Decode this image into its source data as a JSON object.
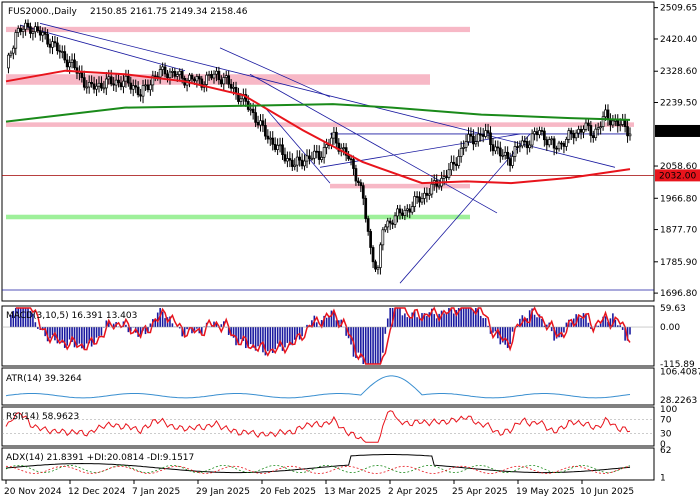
{
  "symbol": "FUS2000.,Daily",
  "ohlc_line": "2150.85 2161.75 2149.34 2158.46",
  "colors": {
    "bull_body": "#ffffff",
    "bear_body": "#000000",
    "ma_fast": "#e8141c",
    "ma_slow": "#1a8a1a",
    "trend": "#1a1aa0",
    "resistance_zone": "#f7b8c6",
    "support_zone": "#9ef09a",
    "price_tag": "#000000",
    "support_tag": "#e8141c"
  },
  "chart_data": [
    {
      "type": "candlestick",
      "title": "FUS2000.,Daily",
      "ohlc_label": "2150.85 2161.75 2149.34 2158.46",
      "x_dates": [
        "20 Nov 2024",
        "12 Dec 2024",
        "7 Jan 2025",
        "29 Jan 2025",
        "20 Feb 2025",
        "13 Mar 2025",
        "2 Apr 2025",
        "25 Apr 2025",
        "19 May 2025",
        "10 Jun 2025"
      ],
      "y_ticks": [
        2509.65,
        2420.4,
        2328.6,
        2239.5,
        2058.6,
        1966.8,
        1877.7,
        1785.9,
        1696.8
      ],
      "ylim": [
        1680,
        2520
      ],
      "last_price": 2158.46,
      "last_price_label": "2158.46",
      "support_level": 2032.0,
      "support_label": "2032.00",
      "series": [
        {
          "name": "MA fast",
          "x": [
            0,
            20,
            40,
            60,
            80,
            100,
            120,
            140,
            155,
            170,
            190,
            210
          ],
          "y": [
            2300,
            2330,
            2320,
            2300,
            2260,
            2160,
            2070,
            2010,
            2015,
            2010,
            2025,
            2050
          ]
        },
        {
          "name": "MA slow",
          "x": [
            0,
            40,
            80,
            110,
            130,
            160,
            190,
            210
          ],
          "y": [
            2185,
            2225,
            2230,
            2235,
            2225,
            2205,
            2195,
            2190
          ]
        }
      ],
      "zones": [
        {
          "kind": "resistance",
          "from": 2440,
          "to": 2455
        },
        {
          "kind": "resistance",
          "from": 2290,
          "to": 2320
        },
        {
          "kind": "resistance",
          "from": 2170,
          "to": 2183
        },
        {
          "kind": "resistance",
          "from": 1995,
          "to": 2008
        },
        {
          "kind": "support",
          "from": 1907,
          "to": 1920
        }
      ]
    },
    {
      "type": "bar",
      "label": "MACD(3,10,5) 16.391 13.403",
      "y_ticks": [
        "59.63",
        "0.00",
        "-115.89"
      ],
      "ylim": [
        -115.89,
        59.63
      ]
    },
    {
      "type": "line",
      "label": "ATR(14) 39.3264",
      "y_ticks": [
        "106.4087",
        "28.2263"
      ],
      "ylim": [
        20,
        110
      ]
    },
    {
      "type": "line",
      "label": "RSI(14) 58.9623",
      "y_ticks": [
        "100",
        "70",
        "30",
        "0"
      ],
      "ylim": [
        0,
        100
      ]
    },
    {
      "type": "line",
      "label": "ADX(14) 21.8391 +DI:20.0814 -DI:9.1517",
      "y_ticks": [
        "62",
        "1"
      ],
      "ylim": [
        0,
        62
      ]
    }
  ]
}
